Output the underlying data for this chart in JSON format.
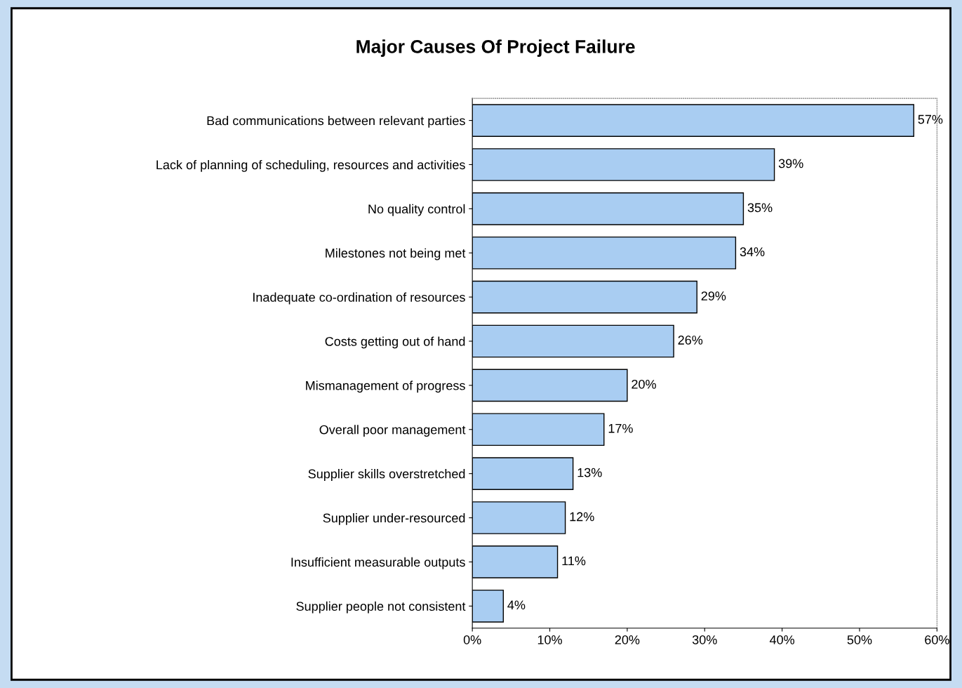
{
  "chart_data": {
    "type": "bar",
    "orientation": "horizontal",
    "title": "Major Causes Of Project Failure",
    "categories": [
      "Bad communications between relevant parties",
      "Lack of planning of scheduling, resources and activities",
      "No quality control",
      "Milestones not being met",
      "Inadequate co-ordination of resources",
      "Costs getting out of hand",
      "Mismanagement of progress",
      "Overall poor management",
      "Supplier skills overstretched",
      "Supplier under-resourced",
      "Insufficient measurable outputs",
      "Supplier people not consistent"
    ],
    "values": [
      57,
      39,
      35,
      34,
      29,
      26,
      20,
      17,
      13,
      12,
      11,
      4
    ],
    "value_labels": [
      "57%",
      "39%",
      "35%",
      "34%",
      "29%",
      "26%",
      "20%",
      "17%",
      "13%",
      "12%",
      "11%",
      "4%"
    ],
    "color": "#a9cdf2",
    "xlim": [
      0,
      60
    ],
    "xticks": [
      {
        "value": 0,
        "label": "0%"
      },
      {
        "value": 10,
        "label": "10%"
      },
      {
        "value": 20,
        "label": "20%"
      },
      {
        "value": 30,
        "label": "30%"
      },
      {
        "value": 40,
        "label": "40%"
      },
      {
        "value": 50,
        "label": "50%"
      },
      {
        "value": 60,
        "label": "60%"
      }
    ]
  }
}
